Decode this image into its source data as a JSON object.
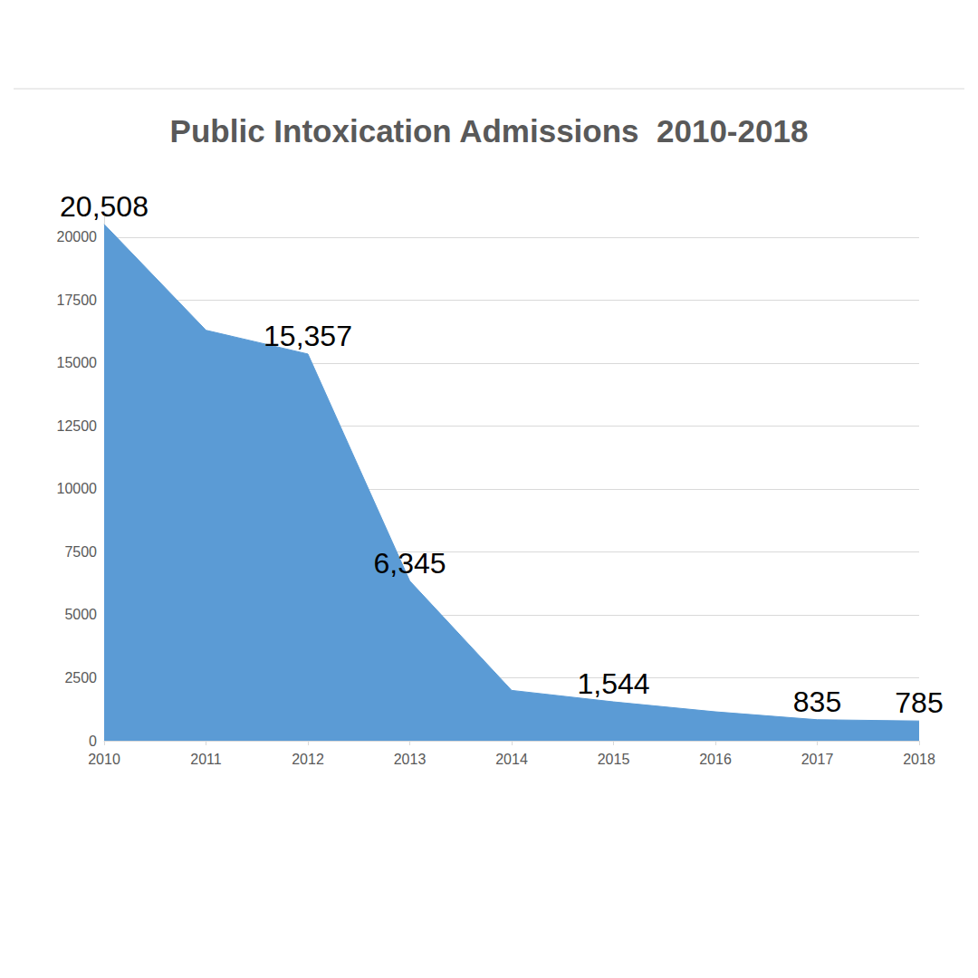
{
  "chart_data": {
    "type": "area",
    "title": "Public Intoxication Admissions  2010-2018",
    "categories": [
      "2010",
      "2011",
      "2012",
      "2013",
      "2014",
      "2015",
      "2016",
      "2017",
      "2018"
    ],
    "values": [
      20508,
      16300,
      15357,
      6345,
      2000,
      1544,
      1150,
      835,
      785
    ],
    "value_labels": [
      "20,508",
      null,
      "15,357",
      "6,345",
      null,
      "1,544",
      null,
      "835",
      "785"
    ],
    "color": "#5b9bd5",
    "ylim": [
      0,
      21000
    ],
    "yticks": [
      0,
      2500,
      5000,
      7500,
      10000,
      12500,
      15000,
      17500,
      20000
    ],
    "grid": true,
    "data_labels": true
  }
}
